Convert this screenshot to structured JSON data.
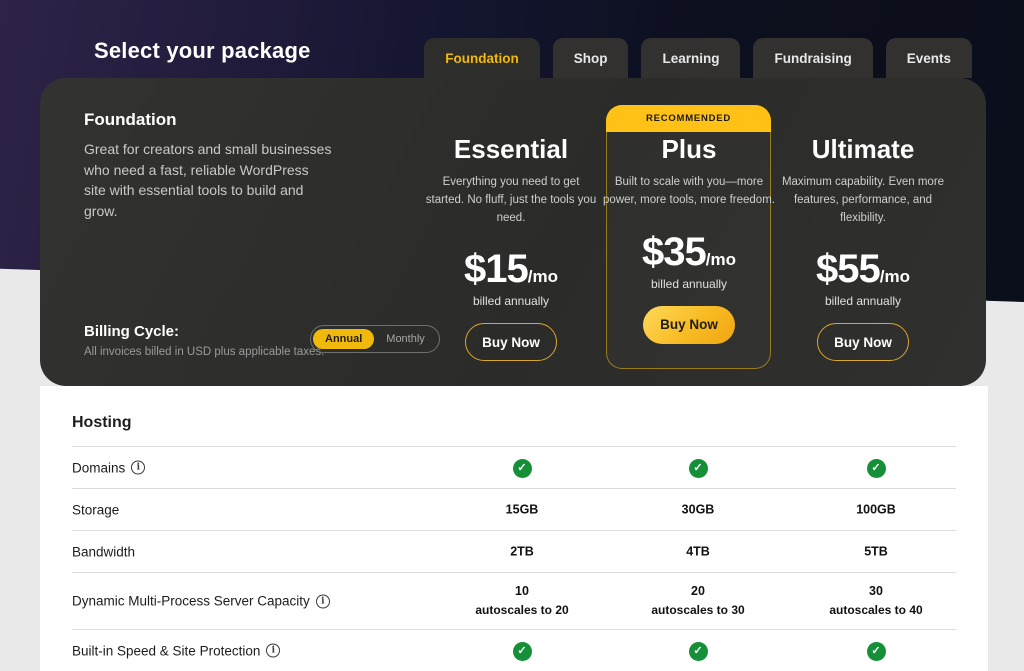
{
  "header": {
    "title": "Select your package"
  },
  "tabs": [
    {
      "label": "Foundation",
      "active": true
    },
    {
      "label": "Shop",
      "active": false
    },
    {
      "label": "Learning",
      "active": false
    },
    {
      "label": "Fundraising",
      "active": false
    },
    {
      "label": "Events",
      "active": false
    }
  ],
  "package": {
    "name": "Foundation",
    "description": "Great for creators and small businesses who need a fast, reliable WordPress site with essential tools to build and grow."
  },
  "plans": [
    {
      "name": "Essential",
      "description": "Everything you need to get started. No fluff, just the tools you need.",
      "price": "$15",
      "period": "/mo",
      "billed_note": "billed annually",
      "cta": "Buy Now"
    },
    {
      "name": "Plus",
      "badge": "RECOMMENDED",
      "description": "Built to scale with you—more power, more tools, more freedom.",
      "price": "$35",
      "period": "/mo",
      "billed_note": "billed annually",
      "cta": "Buy Now"
    },
    {
      "name": "Ultimate",
      "description": "Maximum capability. Even more features, performance, and flexibility.",
      "price": "$55",
      "period": "/mo",
      "billed_note": "billed annually",
      "cta": "Buy Now"
    }
  ],
  "billing": {
    "label": "Billing Cycle:",
    "note": "All invoices billed in USD plus applicable taxes.",
    "options": [
      "Annual",
      "Monthly"
    ],
    "selected": "Annual"
  },
  "table": {
    "section": "Hosting",
    "rows": [
      {
        "feature": "Domains",
        "info": true,
        "values": [
          "check",
          "check",
          "check"
        ]
      },
      {
        "feature": "Storage",
        "info": false,
        "values": [
          "15GB",
          "30GB",
          "100GB"
        ]
      },
      {
        "feature": "Bandwidth",
        "info": false,
        "values": [
          "2TB",
          "4TB",
          "5TB"
        ]
      },
      {
        "feature": "Dynamic Multi-Process Server Capacity",
        "info": true,
        "values": [
          {
            "main": "10",
            "sub": "autoscales to 20"
          },
          {
            "main": "20",
            "sub": "autoscales to 30"
          },
          {
            "main": "30",
            "sub": "autoscales to 40"
          }
        ]
      },
      {
        "feature": "Built-in Speed & Site Protection",
        "info": true,
        "values": [
          "check",
          "check",
          "check"
        ]
      }
    ]
  },
  "icons": {
    "check": "✓",
    "info": "i"
  },
  "colors": {
    "accent_yellow": "#ffc115",
    "active_tab_yellow": "#f2b90d",
    "check_green": "#169038",
    "hero_purple": "#2e2347",
    "hero_navy": "#0c0f1d",
    "card_dark": "#2d2d2b"
  }
}
